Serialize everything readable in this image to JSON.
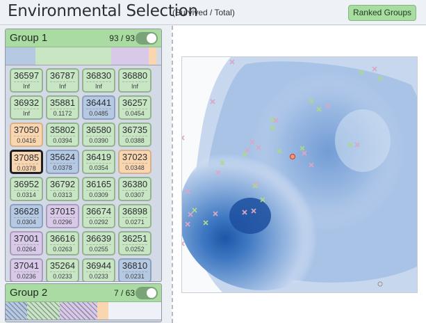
{
  "header": {
    "title": "Environmental Selection",
    "subtitle": "(Survived / Total)",
    "ranked_button": "Ranked Groups"
  },
  "colors": {
    "green": "#c9e6c4",
    "blue": "#b5c9e2",
    "orange": "#f9d6b0",
    "purple": "#d9c9e8",
    "header_green": "#a9dba2"
  },
  "groups": [
    {
      "name": "Group 1",
      "count": "93 / 93",
      "toggle_on": true,
      "bar": [
        {
          "color": "blue",
          "fraction": 0.19
        },
        {
          "color": "green",
          "fraction": 0.49
        },
        {
          "color": "purple",
          "fraction": 0.24
        },
        {
          "color": "orange",
          "fraction": 0.05
        }
      ],
      "tiles": [
        {
          "id": "36597",
          "value": "Inf",
          "color": "green"
        },
        {
          "id": "36787",
          "value": "Inf",
          "color": "green"
        },
        {
          "id": "36830",
          "value": "Inf",
          "color": "green"
        },
        {
          "id": "36880",
          "value": "Inf",
          "color": "green"
        },
        {
          "id": "36932",
          "value": "Inf",
          "color": "green"
        },
        {
          "id": "35881",
          "value": "0.1172",
          "color": "green"
        },
        {
          "id": "36441",
          "value": "0.0485",
          "color": "blue"
        },
        {
          "id": "36257",
          "value": "0.0454",
          "color": "green"
        },
        {
          "id": "37050",
          "value": "0.0416",
          "color": "orange"
        },
        {
          "id": "35802",
          "value": "0.0394",
          "color": "green"
        },
        {
          "id": "36580",
          "value": "0.0390",
          "color": "green"
        },
        {
          "id": "36735",
          "value": "0.0388",
          "color": "green"
        },
        {
          "id": "37085",
          "value": "0.0378",
          "color": "orange",
          "selected": true
        },
        {
          "id": "35624",
          "value": "0.0378",
          "color": "blue"
        },
        {
          "id": "36419",
          "value": "0.0354",
          "color": "green"
        },
        {
          "id": "37023",
          "value": "0.0348",
          "color": "orange"
        },
        {
          "id": "36952",
          "value": "0.0314",
          "color": "green"
        },
        {
          "id": "36792",
          "value": "0.0313",
          "color": "green"
        },
        {
          "id": "36165",
          "value": "0.0309",
          "color": "green"
        },
        {
          "id": "36380",
          "value": "0.0307",
          "color": "green"
        },
        {
          "id": "36628",
          "value": "0.0304",
          "color": "blue"
        },
        {
          "id": "37015",
          "value": "0.0296",
          "color": "purple"
        },
        {
          "id": "36674",
          "value": "0.0292",
          "color": "green"
        },
        {
          "id": "36898",
          "value": "0.0271",
          "color": "green"
        },
        {
          "id": "37001",
          "value": "0.0264",
          "color": "purple"
        },
        {
          "id": "36616",
          "value": "0.0263",
          "color": "green"
        },
        {
          "id": "36639",
          "value": "0.0255",
          "color": "green"
        },
        {
          "id": "36251",
          "value": "0.0252",
          "color": "green"
        },
        {
          "id": "37041",
          "value": "0.0236",
          "color": "purple"
        },
        {
          "id": "35264",
          "value": "0.0233",
          "color": "green"
        },
        {
          "id": "36944",
          "value": "0.0233",
          "color": "green"
        },
        {
          "id": "36810",
          "value": "0.0231",
          "color": "blue"
        }
      ]
    },
    {
      "name": "Group 2",
      "count": "7 / 63",
      "toggle_on": true,
      "bar": [
        {
          "color": "blue",
          "fraction": 0.14,
          "hatched": true
        },
        {
          "color": "green",
          "fraction": 0.21,
          "hatched": true
        },
        {
          "color": "purple",
          "fraction": 0.24,
          "hatched": true
        },
        {
          "color": "orange",
          "fraction": 0.07
        },
        {
          "color": "white",
          "fraction": 0.34
        }
      ]
    }
  ]
}
